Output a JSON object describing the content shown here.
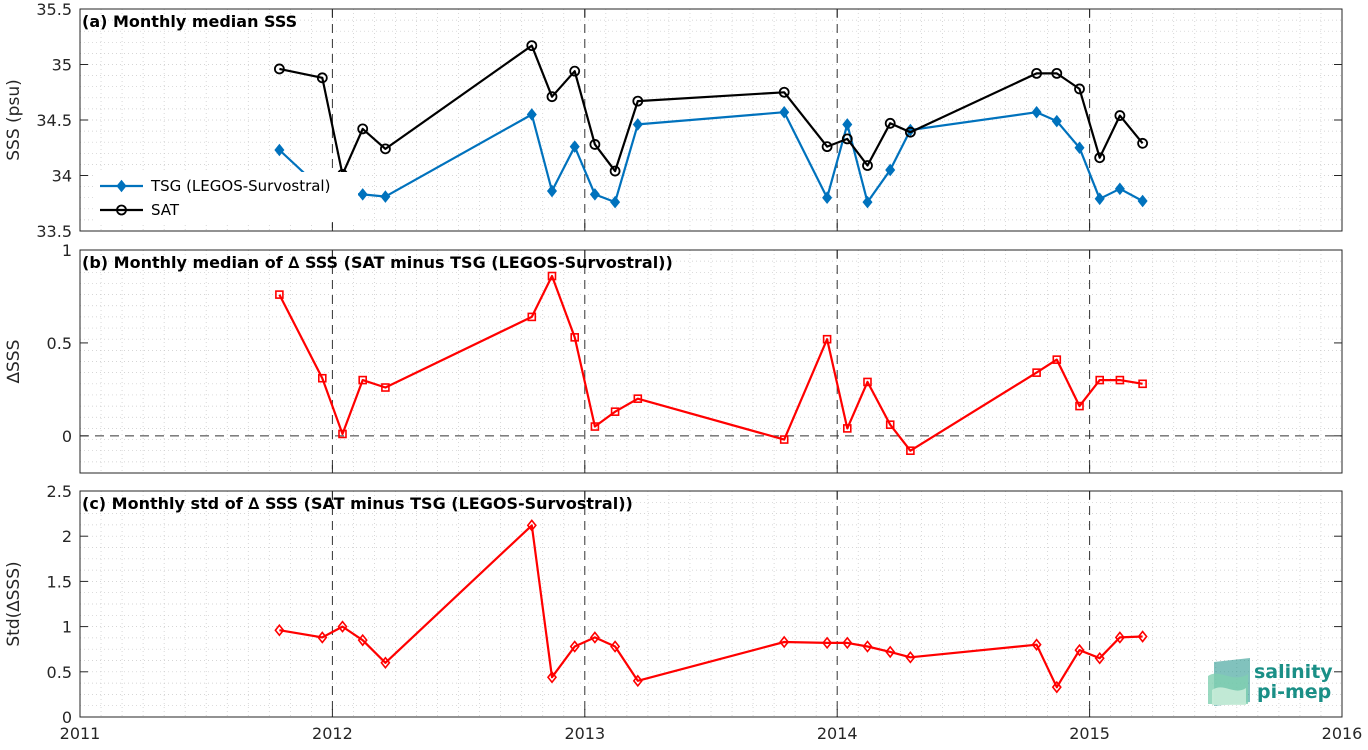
{
  "colors": {
    "tsg": "#0072bd",
    "sat": "#000000",
    "delta": "#ff0000",
    "logo": "#1a8f86"
  },
  "logo": {
    "line1": "salinity",
    "line2": "pi-mep",
    "icon": "salinity-wave-icon"
  },
  "x_axis": {
    "range": [
      2011,
      2016
    ],
    "ticks": [
      2011,
      2012,
      2013,
      2014,
      2015,
      2016
    ],
    "tick_labels": [
      "2011",
      "2012",
      "2013",
      "2014",
      "2015",
      "2016"
    ],
    "year_dividers": [
      2012,
      2013,
      2014,
      2015
    ]
  },
  "chart_data": [
    {
      "type": "line",
      "title": "(a) Monthly median SSS",
      "xlabel": "",
      "ylabel": "SSS (psu)",
      "ylim": [
        33.5,
        35.5
      ],
      "y_ticks": [
        33.5,
        34,
        34.5,
        35,
        35.5
      ],
      "y_tick_labels": [
        "33.5",
        "34",
        "34.5",
        "35",
        "35.5"
      ],
      "grid": true,
      "legend_position": "left",
      "series": [
        {
          "name": "TSG (LEGOS-Survostral)",
          "marker": "diamond",
          "x": [
            2011.79,
            2011.96,
            2012.04,
            2012.12,
            2012.21,
            2012.79,
            2012.87,
            2012.96,
            2013.04,
            2013.12,
            2013.21,
            2013.79,
            2013.96,
            2014.04,
            2014.12,
            2014.21,
            2014.29,
            2014.79,
            2014.87,
            2014.96,
            2015.04,
            2015.12,
            2015.21
          ],
          "y": [
            34.23,
            33.87,
            33.83,
            33.83,
            33.81,
            34.55,
            33.86,
            34.26,
            33.83,
            33.76,
            34.46,
            34.57,
            33.8,
            34.46,
            33.76,
            34.05,
            34.41,
            34.57,
            34.49,
            34.25,
            33.79,
            33.88,
            33.77
          ]
        },
        {
          "name": "SAT",
          "marker": "circle",
          "x": [
            2011.79,
            2011.96,
            2012.04,
            2012.12,
            2012.21,
            2012.79,
            2012.87,
            2012.96,
            2013.04,
            2013.12,
            2013.21,
            2013.79,
            2013.96,
            2014.04,
            2014.12,
            2014.21,
            2014.29,
            2014.79,
            2014.87,
            2014.96,
            2015.04,
            2015.12,
            2015.21
          ],
          "y": [
            34.96,
            34.88,
            34.01,
            34.42,
            34.24,
            35.17,
            34.71,
            34.94,
            34.28,
            34.04,
            34.67,
            34.75,
            34.26,
            34.33,
            34.09,
            34.47,
            34.39,
            34.92,
            34.92,
            34.78,
            34.16,
            34.54,
            34.29
          ]
        }
      ]
    },
    {
      "type": "line",
      "title": "(b) Monthly median of ∆ SSS (SAT minus TSG (LEGOS-Survostral))",
      "xlabel": "",
      "ylabel": "∆SSS",
      "ylim": [
        -0.2,
        1
      ],
      "y_ticks": [
        0,
        0.5,
        1
      ],
      "y_tick_labels": [
        "0",
        "0.5",
        "1"
      ],
      "grid": true,
      "zero_line": true,
      "series": [
        {
          "marker": "square",
          "x": [
            2011.79,
            2011.96,
            2012.04,
            2012.12,
            2012.21,
            2012.79,
            2012.87,
            2012.96,
            2013.04,
            2013.12,
            2013.21,
            2013.79,
            2013.96,
            2014.04,
            2014.12,
            2014.21,
            2014.29,
            2014.79,
            2014.87,
            2014.96,
            2015.04,
            2015.12,
            2015.21
          ],
          "y": [
            0.76,
            0.31,
            0.01,
            0.3,
            0.26,
            0.64,
            0.86,
            0.53,
            0.05,
            0.13,
            0.2,
            -0.02,
            0.52,
            0.04,
            0.29,
            0.06,
            -0.08,
            0.34,
            0.41,
            0.16,
            0.3,
            0.3,
            0.28
          ]
        }
      ]
    },
    {
      "type": "line",
      "title": "(c) Monthly std of ∆ SSS (SAT minus TSG (LEGOS-Survostral))",
      "xlabel": "",
      "ylabel": "Std(∆SSS)",
      "ylim": [
        0,
        2.5
      ],
      "y_ticks": [
        0,
        0.5,
        1,
        1.5,
        2,
        2.5
      ],
      "y_tick_labels": [
        "0",
        "0.5",
        "1",
        "1.5",
        "2",
        "2.5"
      ],
      "grid": true,
      "series": [
        {
          "marker": "diamond",
          "x": [
            2011.79,
            2011.96,
            2012.04,
            2012.12,
            2012.21,
            2012.79,
            2012.87,
            2012.96,
            2013.04,
            2013.12,
            2013.21,
            2013.79,
            2013.96,
            2014.04,
            2014.12,
            2014.21,
            2014.29,
            2014.79,
            2014.87,
            2014.96,
            2015.04,
            2015.12,
            2015.21
          ],
          "y": [
            0.96,
            0.88,
            1.0,
            0.85,
            0.6,
            2.12,
            0.44,
            0.78,
            0.88,
            0.78,
            0.4,
            0.83,
            0.82,
            0.82,
            0.78,
            0.72,
            0.66,
            0.8,
            0.33,
            0.74,
            0.65,
            0.88,
            0.89
          ]
        }
      ]
    }
  ]
}
